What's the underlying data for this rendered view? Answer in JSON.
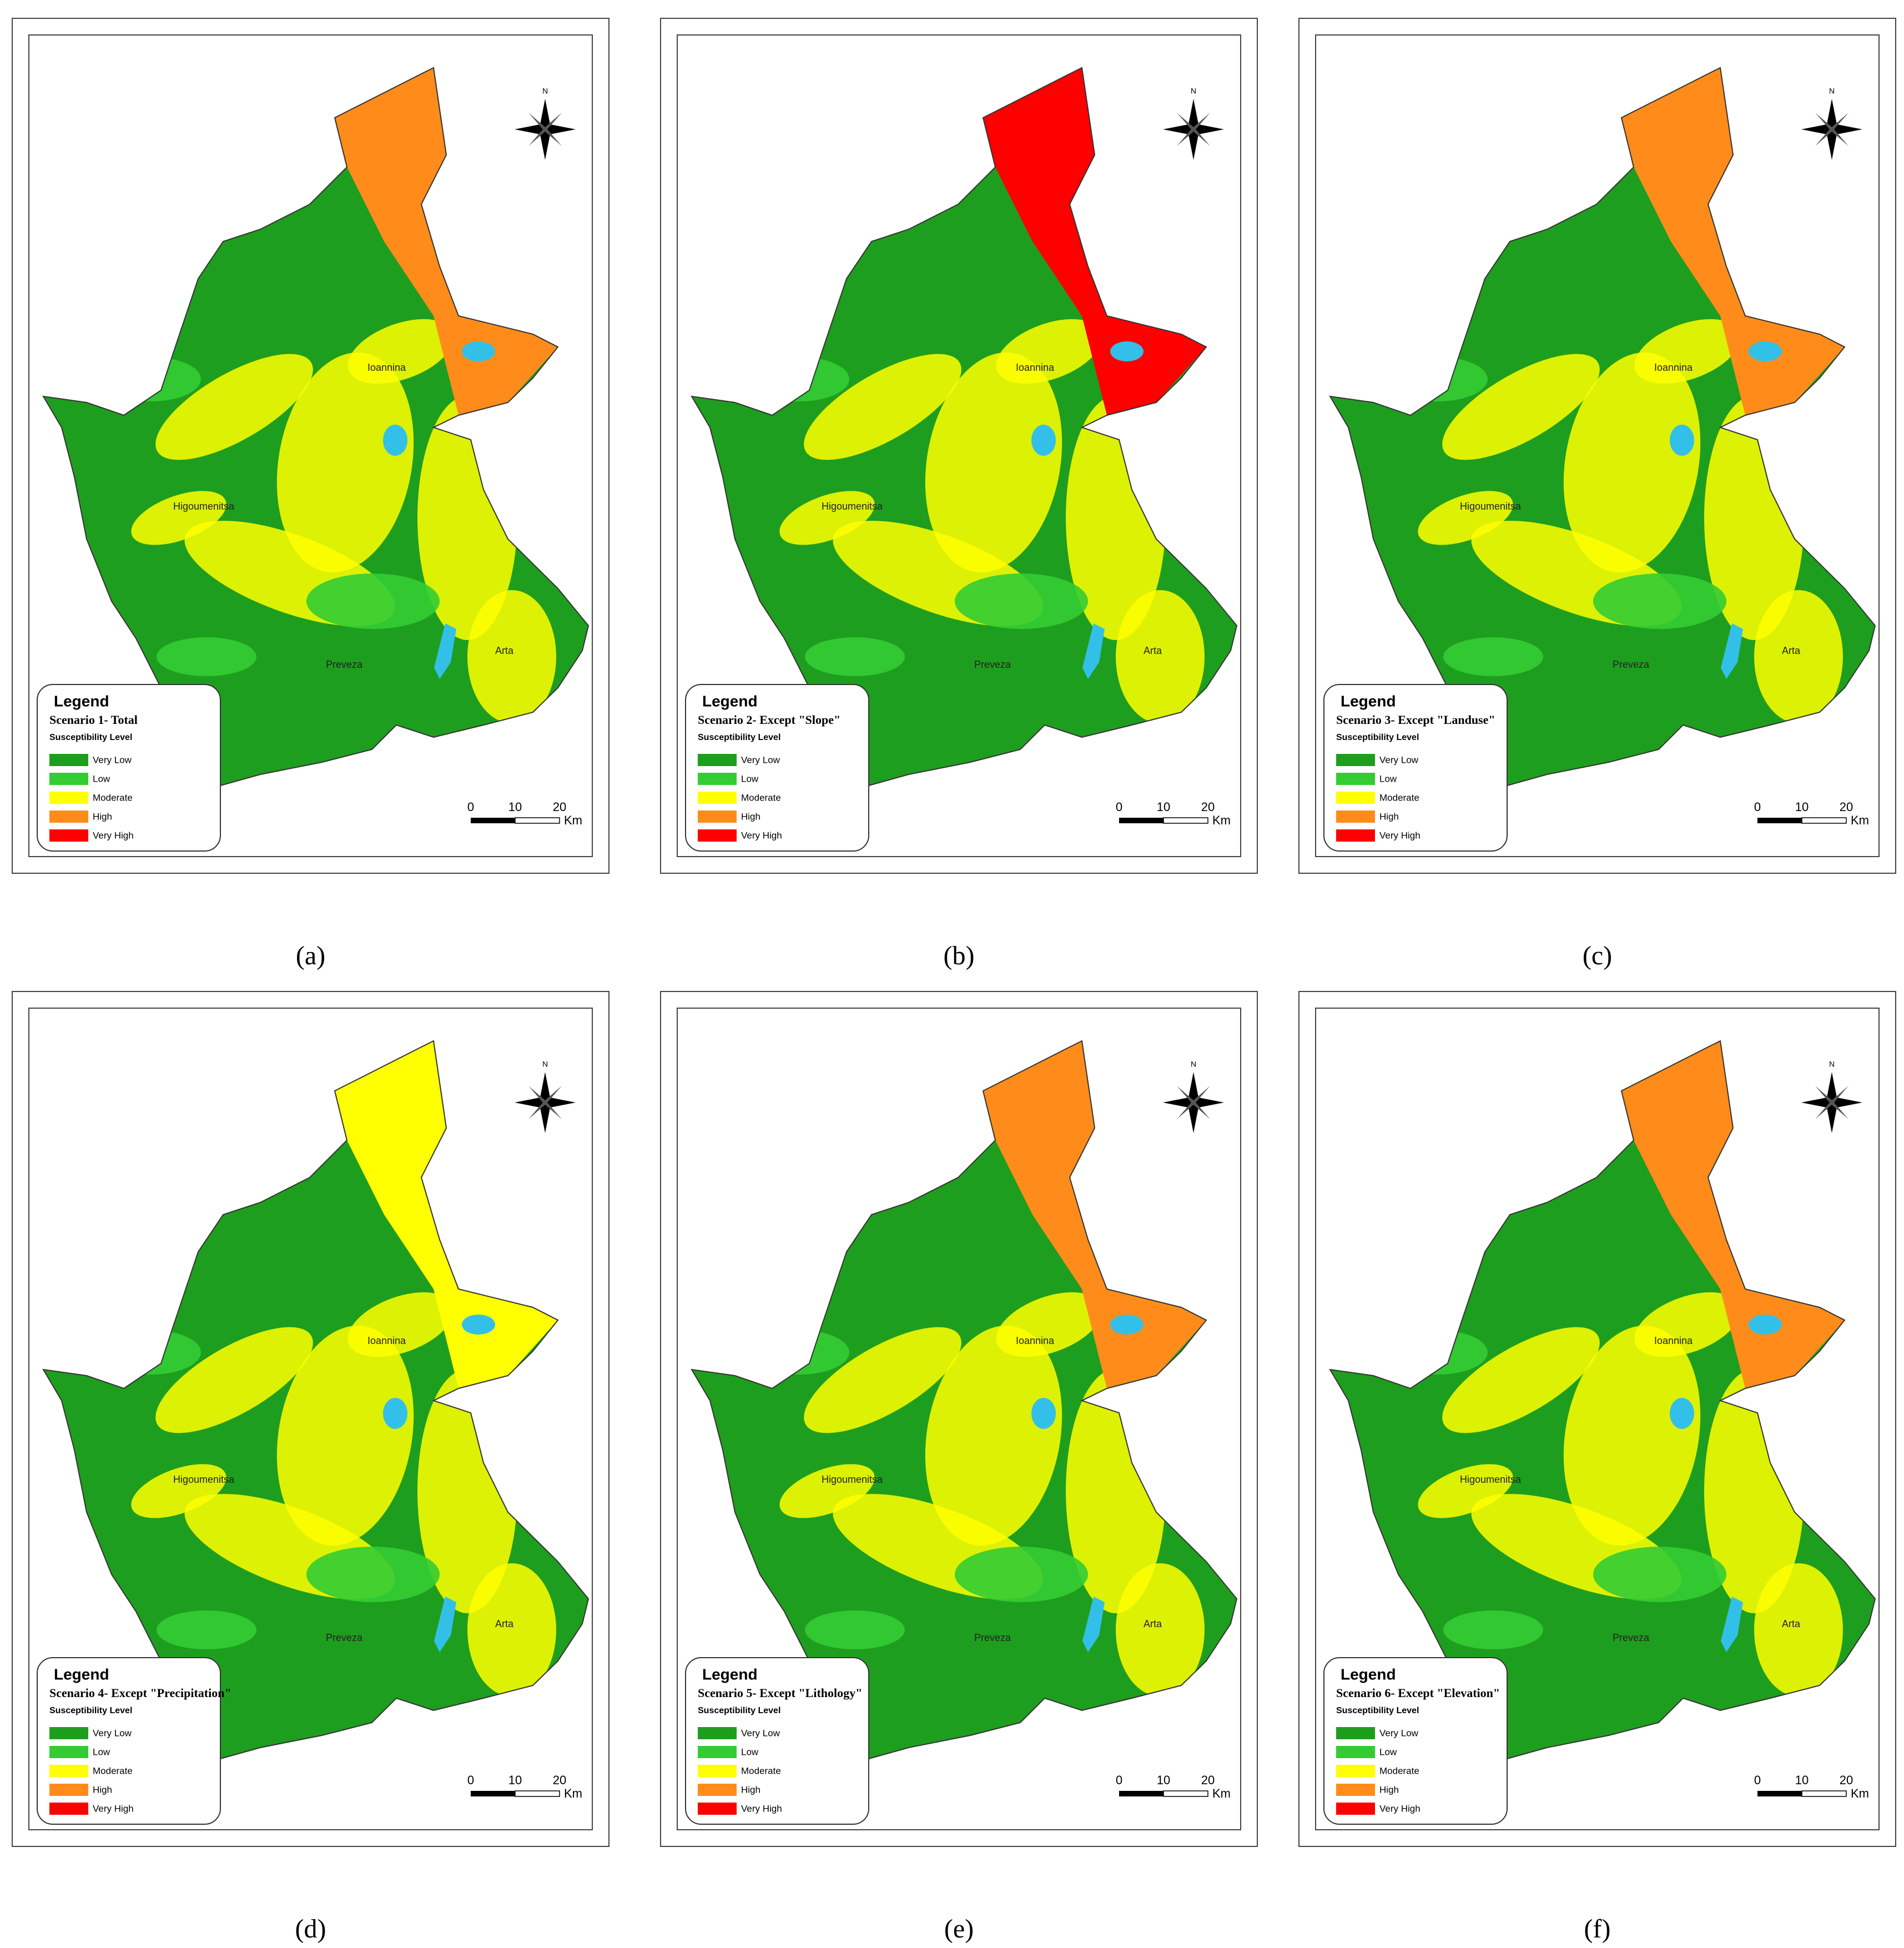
{
  "panels": [
    {
      "caption": "(a)",
      "legend": {
        "title": "Legend",
        "scenario": "Scenario 1- Total",
        "subtitle": "Susceptibility Level"
      },
      "north_color": "#ff8c1a"
    },
    {
      "caption": "(b)",
      "legend": {
        "title": "Legend",
        "scenario": "Scenario 2- Except \"Slope\"",
        "subtitle": "Susceptibility Level"
      },
      "north_color": "#ff0000"
    },
    {
      "caption": "(c)",
      "legend": {
        "title": "Legend",
        "scenario": "Scenario 3- Except \"Landuse\"",
        "subtitle": "Susceptibility Level"
      },
      "north_color": "#ff8c1a"
    },
    {
      "caption": "(d)",
      "legend": {
        "title": "Legend",
        "scenario": "Scenario 4- Except \"Precipitation\"",
        "subtitle": "Susceptibility Level"
      },
      "north_color": "#ffff00"
    },
    {
      "caption": "(e)",
      "legend": {
        "title": "Legend",
        "scenario": "Scenario 5- Except \"Lithology\"",
        "subtitle": "Susceptibility Level"
      },
      "north_color": "#ff8c1a"
    },
    {
      "caption": "(f)",
      "legend": {
        "title": "Legend",
        "scenario": "Scenario 6- Except \"Elevation\"",
        "subtitle": "Susceptibility Level"
      },
      "north_color": "#ff8c1a"
    }
  ],
  "levels": [
    {
      "label": "Very Low",
      "color": "#1e9e1e"
    },
    {
      "label": "Low",
      "color": "#33cc33"
    },
    {
      "label": "Moderate",
      "color": "#ffff00"
    },
    {
      "label": "High",
      "color": "#ff8c1a"
    },
    {
      "label": "Very High",
      "color": "#ff0000"
    }
  ],
  "places": [
    "Ioannina",
    "Higoumenitsa",
    "Preveza",
    "Arta"
  ],
  "scale_bar": {
    "ticks": [
      "0",
      "10",
      "20"
    ],
    "unit": "Km"
  },
  "compass": "N"
}
